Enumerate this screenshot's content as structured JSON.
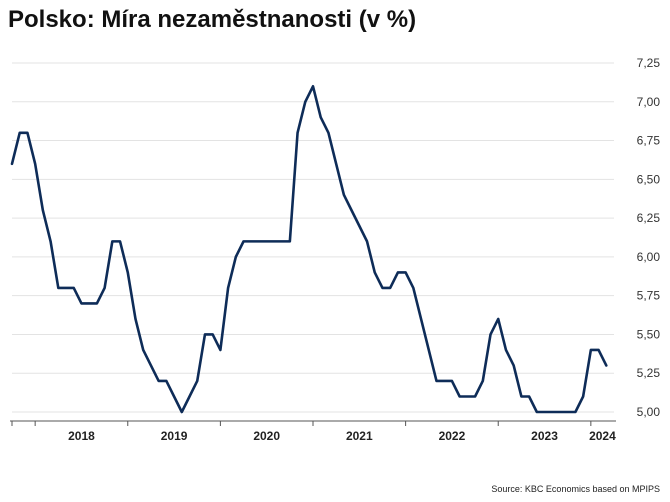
{
  "chart_data": {
    "type": "line",
    "title": "Polsko: Míra nezaměstnanosti (v %)",
    "source": "Source: KBC Economics based on MPIPS",
    "xlabel": "",
    "ylabel": "",
    "ylim": [
      5.0,
      7.25
    ],
    "yticks": [
      "5,00",
      "5,25",
      "5,50",
      "5,75",
      "6,00",
      "6,25",
      "6,50",
      "6,75",
      "7,00",
      "7,25"
    ],
    "y_axis_position": "right",
    "grid": true,
    "legend": "none",
    "x_categories": [
      "2018",
      "2019",
      "2020",
      "2021",
      "2022",
      "2023",
      "2024"
    ],
    "x_start": "2017-10",
    "x_end": "2024-04",
    "line_color": "#0e2c58",
    "series": [
      {
        "x": [
          "2017-10",
          "2017-11",
          "2017-12",
          "2018-01",
          "2018-02",
          "2018-03",
          "2018-04",
          "2018-05",
          "2018-06",
          "2018-07",
          "2018-08",
          "2018-09",
          "2018-10",
          "2018-11",
          "2018-12",
          "2019-01",
          "2019-02",
          "2019-03",
          "2019-04",
          "2019-05",
          "2019-06",
          "2019-07",
          "2019-08",
          "2019-09",
          "2019-10",
          "2019-11",
          "2019-12",
          "2020-01",
          "2020-02",
          "2020-03",
          "2020-04",
          "2020-05",
          "2020-06",
          "2020-07",
          "2020-08",
          "2020-09",
          "2020-10",
          "2020-11",
          "2020-12",
          "2021-01",
          "2021-02",
          "2021-03",
          "2021-04",
          "2021-05",
          "2021-06",
          "2021-07",
          "2021-08",
          "2021-09",
          "2021-10",
          "2021-11",
          "2021-12",
          "2022-01",
          "2022-02",
          "2022-03",
          "2022-04",
          "2022-05",
          "2022-06",
          "2022-07",
          "2022-08",
          "2022-09",
          "2022-10",
          "2022-11",
          "2022-12",
          "2023-01",
          "2023-02",
          "2023-03",
          "2023-04",
          "2023-05",
          "2023-06",
          "2023-07",
          "2023-08",
          "2023-09",
          "2023-10",
          "2023-11",
          "2023-12",
          "2024-01",
          "2024-02",
          "2024-03"
        ],
        "values": [
          6.6,
          6.8,
          6.8,
          6.6,
          6.3,
          6.1,
          5.8,
          5.8,
          5.8,
          5.7,
          5.7,
          5.7,
          5.8,
          6.1,
          6.1,
          5.9,
          5.6,
          5.4,
          5.3,
          5.2,
          5.2,
          5.1,
          5.0,
          5.1,
          5.2,
          5.5,
          5.5,
          5.4,
          5.8,
          6.0,
          6.1,
          6.1,
          6.1,
          6.1,
          6.1,
          6.1,
          6.1,
          6.8,
          7.0,
          7.1,
          6.9,
          6.8,
          6.6,
          6.4,
          6.3,
          6.2,
          6.1,
          5.9,
          5.8,
          5.8,
          5.9,
          5.9,
          5.8,
          5.6,
          5.4,
          5.2,
          5.2,
          5.2,
          5.1,
          5.1,
          5.1,
          5.2,
          5.5,
          5.6,
          5.4,
          5.3,
          5.1,
          5.1,
          5.0,
          5.0,
          5.0,
          5.0,
          5.0,
          5.0,
          5.1,
          5.4,
          5.4,
          5.3
        ]
      }
    ]
  }
}
